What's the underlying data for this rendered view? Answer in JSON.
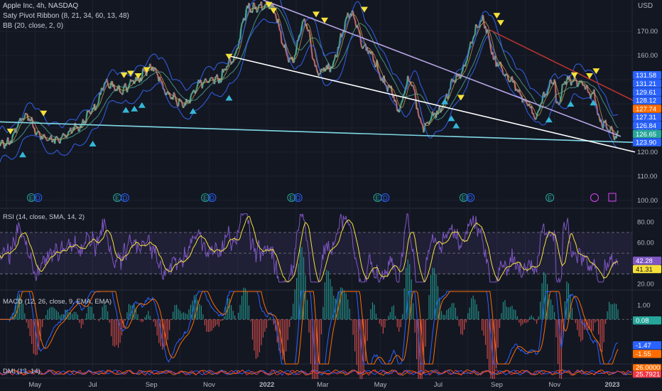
{
  "header": {
    "symbol_line": "Apple Inc, 4h, NASDAQ",
    "indicator_1": "Saty Pivot Ribbon (8, 21, 34, 60, 13, 48)",
    "indicator_2": "BB (20, close, 2, 0)",
    "currency": "USD"
  },
  "colors": {
    "background": "#131722",
    "grid": "#1e2230",
    "bb_band": "#2f5bd8",
    "price_line": "#d1d4dc",
    "trend_cyan": "#7fd9e6",
    "trend_white": "#ffffff",
    "trend_lavender": "#b9a7e6",
    "trend_red": "#b8332f",
    "marker_yellow": "#f5e13a",
    "marker_cyan": "#35b7d6",
    "rsi_line": "#7e57c2",
    "rsi_ma": "#f5e13a",
    "macd_line": "#2962ff",
    "macd_signal": "#ff6d00",
    "hist_up": "#26a69a",
    "hist_down": "#ef5350"
  },
  "chart_data": [
    {
      "type": "line",
      "pane": "price",
      "title": "Apple Inc, 4h, NASDAQ",
      "ylim": [
        97,
        183
      ],
      "ytick_labels": [
        "170.00",
        "160.00",
        "130.00",
        "120.00",
        "110.00",
        "100.00"
      ],
      "ytick_values": [
        170,
        160,
        130,
        120,
        110,
        100
      ],
      "x_labels": [
        "May",
        "Jul",
        "Sep",
        "Nov",
        "2022",
        "Mar",
        "May",
        "Jul",
        "Sep",
        "Nov",
        "2023"
      ],
      "price_points": [
        [
          "2021-04-01",
          123.5
        ],
        [
          "2021-04-20",
          134.8
        ],
        [
          "2021-05-10",
          126.0
        ],
        [
          "2021-05-25",
          124.8
        ],
        [
          "2021-06-15",
          130.0
        ],
        [
          "2021-07-01",
          137.0
        ],
        [
          "2021-07-15",
          148.0
        ],
        [
          "2021-08-01",
          146.0
        ],
        [
          "2021-08-15",
          149.5
        ],
        [
          "2021-09-01",
          155.0
        ],
        [
          "2021-09-20",
          143.5
        ],
        [
          "2021-10-05",
          139.5
        ],
        [
          "2021-10-25",
          149.0
        ],
        [
          "2021-11-10",
          150.0
        ],
        [
          "2021-11-25",
          158.0
        ],
        [
          "2021-12-13",
          179.5
        ],
        [
          "2022-01-04",
          181.0
        ],
        [
          "2022-01-27",
          157.5
        ],
        [
          "2022-02-10",
          174.0
        ],
        [
          "2022-02-24",
          153.0
        ],
        [
          "2022-03-08",
          155.0
        ],
        [
          "2022-03-31",
          177.0
        ],
        [
          "2022-04-15",
          163.0
        ],
        [
          "2022-05-11",
          146.5
        ],
        [
          "2022-05-20",
          138.0
        ],
        [
          "2022-06-01",
          150.0
        ],
        [
          "2022-06-16",
          130.0
        ],
        [
          "2022-06-30",
          136.5
        ],
        [
          "2022-07-20",
          150.0
        ],
        [
          "2022-08-17",
          174.0
        ],
        [
          "2022-09-01",
          157.0
        ],
        [
          "2022-09-15",
          150.0
        ],
        [
          "2022-10-03",
          140.5
        ],
        [
          "2022-10-13",
          134.0
        ],
        [
          "2022-10-20",
          143.0
        ],
        [
          "2022-11-01",
          150.0
        ],
        [
          "2022-11-03",
          139.5
        ],
        [
          "2022-11-15",
          150.5
        ],
        [
          "2022-11-30",
          148.0
        ],
        [
          "2022-12-12",
          144.0
        ],
        [
          "2022-12-20",
          132.0
        ],
        [
          "2022-12-30",
          129.9
        ],
        [
          "2023-01-05",
          126.0
        ]
      ],
      "bb_upper_offset": 4.5,
      "bb_lower_offset": 4.5,
      "trendlines": [
        {
          "name": "cyan support",
          "from": [
            "2021-03-25",
            132.5
          ],
          "to": [
            "2023-01-25",
            124.0
          ]
        },
        {
          "name": "white falling support",
          "from": [
            "2021-11-20",
            160.0
          ],
          "to": [
            "2023-01-25",
            120.0
          ]
        },
        {
          "name": "lavender falling resistance",
          "from": [
            "2021-12-28",
            183.0
          ],
          "to": [
            "2023-01-10",
            126.5
          ]
        },
        {
          "name": "red falling resistance",
          "from": [
            "2022-08-25",
            170.5
          ],
          "to": [
            "2023-01-25",
            141.0
          ]
        }
      ],
      "sell_markers": [
        [
          "2021-04-05",
          128.5
        ],
        [
          "2021-05-10",
          136.0
        ],
        [
          "2021-08-03",
          151.8
        ],
        [
          "2021-08-10",
          152.5
        ],
        [
          "2021-08-18",
          151.5
        ],
        [
          "2021-08-27",
          154.0
        ],
        [
          "2021-11-22",
          159.5
        ],
        [
          "2022-01-03",
          181.0
        ],
        [
          "2022-01-08",
          178.5
        ],
        [
          "2022-02-22",
          177.0
        ],
        [
          "2022-03-03",
          174.5
        ],
        [
          "2022-04-14",
          179.0
        ],
        [
          "2022-07-25",
          142.5
        ],
        [
          "2022-09-01",
          176.5
        ],
        [
          "2022-09-05",
          173.5
        ],
        [
          "2022-11-22",
          151.8
        ],
        [
          "2022-12-08",
          151.5
        ],
        [
          "2022-12-15",
          153.5
        ]
      ],
      "buy_markers": [
        [
          "2021-04-18",
          119.0
        ],
        [
          "2021-07-01",
          123.5
        ],
        [
          "2021-08-05",
          137.5
        ],
        [
          "2021-08-14",
          138.0
        ],
        [
          "2021-08-22",
          139.5
        ],
        [
          "2021-10-15",
          137.0
        ],
        [
          "2021-11-22",
          142.5
        ],
        [
          "2022-07-08",
          141.0
        ],
        [
          "2022-07-15",
          134.0
        ],
        [
          "2022-07-20",
          131.0
        ],
        [
          "2022-10-26",
          133.5
        ],
        [
          "2022-11-18",
          140.0
        ],
        [
          "2022-12-12",
          140.5
        ]
      ],
      "price_badges": [
        {
          "value": "131.58",
          "color": "#2962ff"
        },
        {
          "value": "131.21",
          "color": "#2962ff"
        },
        {
          "value": "129.61",
          "color": "#2962ff"
        },
        {
          "value": "128.12",
          "color": "#2962ff"
        },
        {
          "value": "127.74",
          "color": "#ff6d00"
        },
        {
          "value": "127.31",
          "color": "#2962ff"
        },
        {
          "value": "126.84",
          "color": "#2962ff"
        },
        {
          "value": "126.65",
          "color": "#26a69a"
        },
        {
          "value": "123.90",
          "color": "#2962ff"
        }
      ],
      "event_labels": [
        "E",
        "D",
        "E",
        "D",
        "E",
        "D",
        "E",
        "D",
        "E",
        "D",
        "E",
        "D",
        "E"
      ]
    },
    {
      "type": "line",
      "pane": "rsi",
      "title": "RSI (14, close, SMA, 14, 2)",
      "ylim": [
        15,
        92
      ],
      "ytick_labels": [
        "80.00",
        "60.00",
        "20.00"
      ],
      "ytick_values": [
        80,
        60,
        20
      ],
      "bands": [
        70,
        50,
        30
      ],
      "badges": [
        {
          "value": "42.28",
          "color": "#7e57c2"
        },
        {
          "value": "41.31",
          "color": "#f5e13a"
        }
      ]
    },
    {
      "type": "bar",
      "pane": "macd",
      "title": "MACD (12, 26, close, 9, EMA, EMA)",
      "ylim": [
        -3.2,
        2.0
      ],
      "ytick_labels": [
        "1.00",
        "0.00"
      ],
      "ytick_values": [
        1,
        0
      ],
      "badges": [
        {
          "value": "0.08",
          "color": "#26a69a"
        },
        {
          "value": "-1.47",
          "color": "#2962ff"
        },
        {
          "value": "-1.55",
          "color": "#ff6d00"
        }
      ]
    },
    {
      "type": "line",
      "pane": "dmi",
      "title": "DMI (13, 14)",
      "badges": [
        {
          "value": "26.0000",
          "color": "#ff6d00"
        },
        {
          "value": "25.7921",
          "color": "#f23645"
        }
      ]
    }
  ]
}
